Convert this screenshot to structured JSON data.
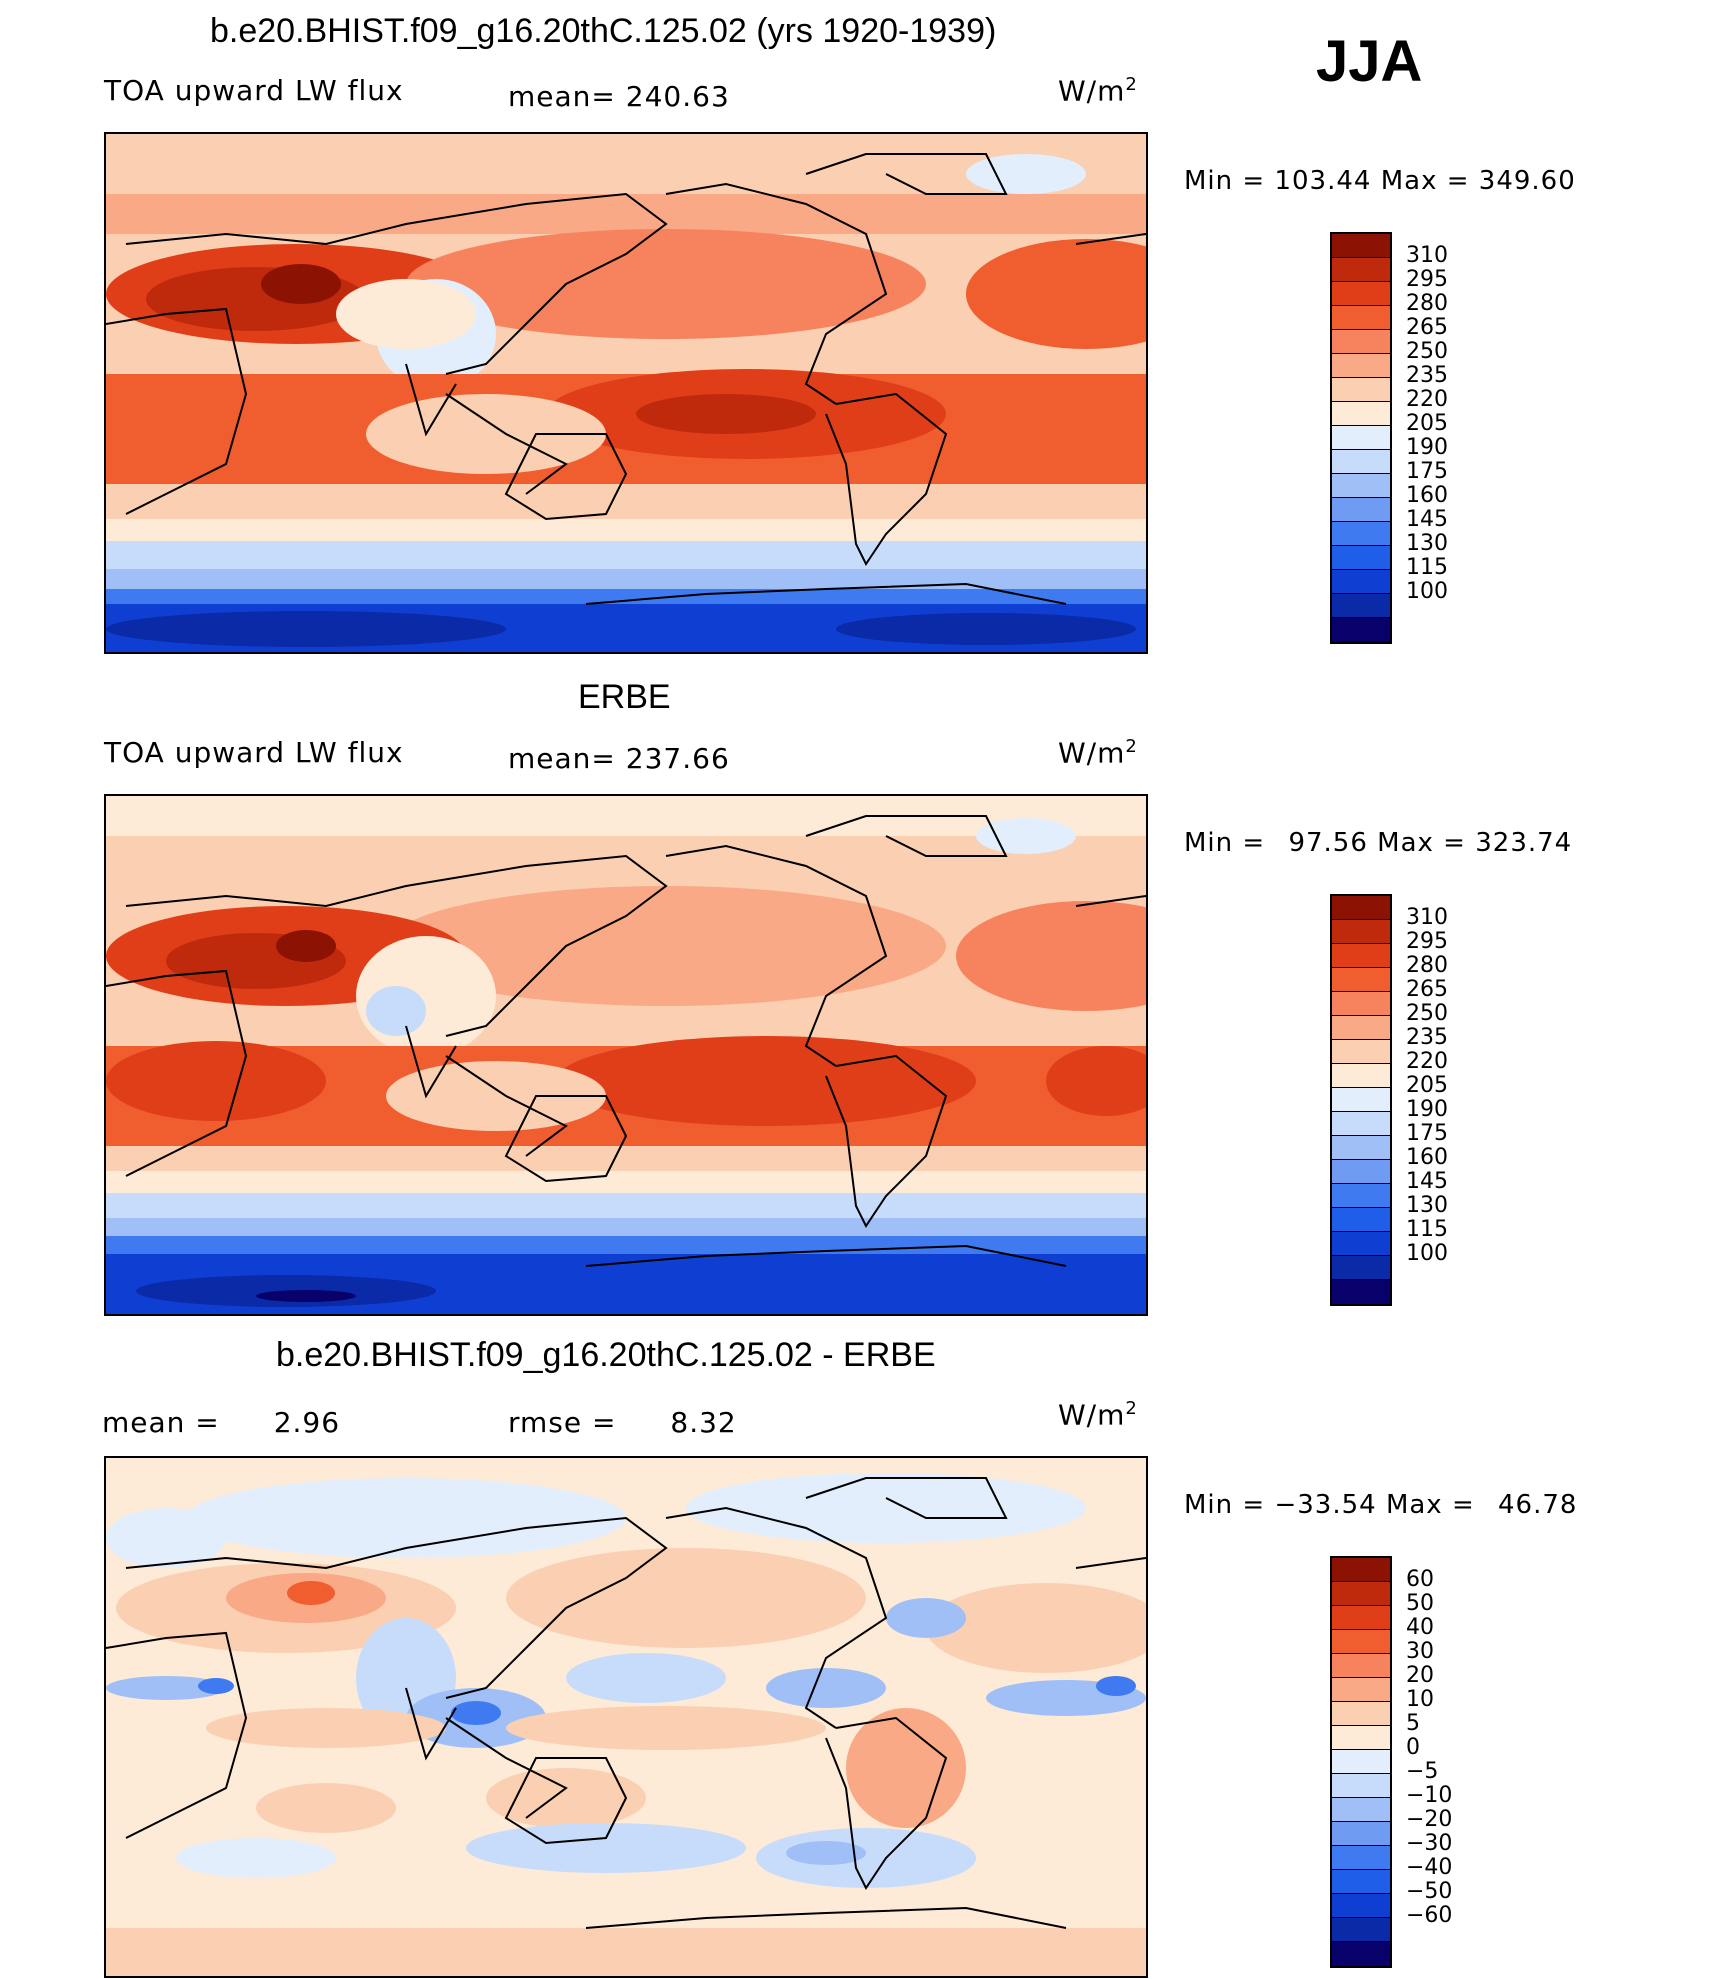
{
  "season": "JJA",
  "units_base": "W/m",
  "units_exp": "2",
  "palette_abs": [
    "#08006b",
    "#0a2aa8",
    "#0f3fd2",
    "#1f5ee8",
    "#3f7af0",
    "#6f9cf2",
    "#9fbff6",
    "#c7dcfa",
    "#e2eefc",
    "#fdebd8",
    "#fbcfb2",
    "#f9a985",
    "#f6835e",
    "#f05d2f",
    "#e03e18",
    "#c02a0c",
    "#8c1204"
  ],
  "palette_diff": [
    "#08006b",
    "#0a2aa8",
    "#0f3fd2",
    "#1f5ee8",
    "#3f7af0",
    "#6f9cf2",
    "#9fbff6",
    "#c7dcfa",
    "#e2eefc",
    "#fdebd8",
    "#fbcfb2",
    "#f9a985",
    "#f6835e",
    "#f05d2f",
    "#e03e18",
    "#c02a0c",
    "#8c1204"
  ],
  "chart_data": [
    {
      "type": "heatmap",
      "title": "b.e20.BHIST.f09_g16.20thC.125.02 (yrs 1920-1939)",
      "variable": "TOA upward LW flux",
      "mean_label": "mean=",
      "mean": "240.63",
      "min_label": "Min =",
      "min": "103.44",
      "max_label": "Max =",
      "max": "349.60",
      "colorbar_levels": [
        "310",
        "295",
        "280",
        "265",
        "250",
        "235",
        "220",
        "205",
        "190",
        "175",
        "160",
        "145",
        "130",
        "115",
        "100"
      ]
    },
    {
      "type": "heatmap",
      "title": "ERBE",
      "variable": "TOA upward LW flux",
      "mean_label": "mean=",
      "mean": "237.66",
      "min_label": "Min =",
      "min": "97.56",
      "max_label": "Max =",
      "max": "323.74",
      "colorbar_levels": [
        "310",
        "295",
        "280",
        "265",
        "250",
        "235",
        "220",
        "205",
        "190",
        "175",
        "160",
        "145",
        "130",
        "115",
        "100"
      ]
    },
    {
      "type": "heatmap",
      "title": "b.e20.BHIST.f09_g16.20thC.125.02 - ERBE",
      "mean_label": "mean =",
      "mean": "2.96",
      "rmse_label": "rmse =",
      "rmse": "8.32",
      "min_label": "Min =",
      "min": "−33.54",
      "max_label": "Max =",
      "max": "46.78",
      "colorbar_levels": [
        "60",
        "50",
        "40",
        "30",
        "20",
        "10",
        "5",
        "0",
        "−5",
        "−10",
        "−20",
        "−30",
        "−40",
        "−50",
        "−60"
      ]
    }
  ]
}
